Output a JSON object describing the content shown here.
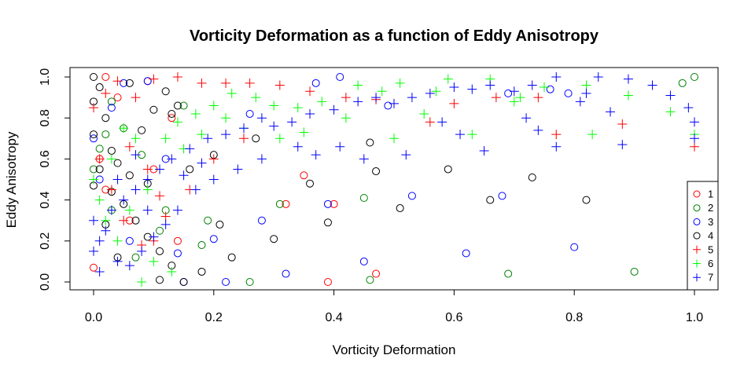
{
  "chart_data": {
    "type": "scatter",
    "title": "Vorticity Deformation as a function of Eddy Anisotropy",
    "xlabel": "Vorticity Deformation",
    "ylabel": "Eddy Anisotropy",
    "xlim": [
      0,
      1
    ],
    "ylim": [
      0,
      1
    ],
    "x_ticks": [
      "0.0",
      "0.2",
      "0.4",
      "0.6",
      "0.8",
      "1.0"
    ],
    "y_ticks": [
      "0.0",
      "0.2",
      "0.4",
      "0.6",
      "0.8",
      "1.0"
    ],
    "grid": false,
    "legend_position": "bottom-right",
    "series": [
      {
        "name": "1",
        "marker": "circle",
        "color": "#FF0000",
        "points": [
          [
            0.0,
            0.07
          ],
          [
            0.01,
            0.6
          ],
          [
            0.02,
            1.0
          ],
          [
            0.04,
            0.9
          ],
          [
            0.09,
            0.98
          ],
          [
            0.13,
            0.8
          ],
          [
            0.35,
            0.52
          ],
          [
            0.32,
            0.38
          ],
          [
            0.4,
            0.38
          ],
          [
            0.39,
            0.0
          ],
          [
            0.47,
            0.04
          ],
          [
            0.14,
            0.2
          ],
          [
            0.06,
            0.3
          ],
          [
            0.02,
            0.45
          ],
          [
            0.1,
            0.55
          ]
        ]
      },
      {
        "name": "2",
        "marker": "circle",
        "color": "#008000",
        "points": [
          [
            0.0,
            0.55
          ],
          [
            0.01,
            0.65
          ],
          [
            0.02,
            0.72
          ],
          [
            0.03,
            0.88
          ],
          [
            0.05,
            0.75
          ],
          [
            0.08,
            0.62
          ],
          [
            0.12,
            0.35
          ],
          [
            0.15,
            0.86
          ],
          [
            0.19,
            0.3
          ],
          [
            0.26,
            0.0
          ],
          [
            0.31,
            0.38
          ],
          [
            0.45,
            0.41
          ],
          [
            0.46,
            0.01
          ],
          [
            0.69,
            0.04
          ],
          [
            0.9,
            0.05
          ],
          [
            0.98,
            0.97
          ],
          [
            1.0,
            1.0
          ],
          [
            0.18,
            0.18
          ],
          [
            0.07,
            0.12
          ],
          [
            0.11,
            0.25
          ],
          [
            0.03,
            0.35
          ]
        ]
      },
      {
        "name": "3",
        "marker": "circle",
        "color": "#0000FF",
        "points": [
          [
            0.0,
            0.7
          ],
          [
            0.01,
            0.5
          ],
          [
            0.03,
            0.85
          ],
          [
            0.05,
            0.97
          ],
          [
            0.09,
            0.98
          ],
          [
            0.15,
            0.0
          ],
          [
            0.14,
            0.14
          ],
          [
            0.2,
            0.21
          ],
          [
            0.22,
            0.0
          ],
          [
            0.28,
            0.3
          ],
          [
            0.32,
            0.04
          ],
          [
            0.39,
            0.38
          ],
          [
            0.37,
            0.97
          ],
          [
            0.41,
            1.0
          ],
          [
            0.45,
            0.1
          ],
          [
            0.49,
            0.86
          ],
          [
            0.53,
            0.42
          ],
          [
            0.62,
            0.14
          ],
          [
            0.68,
            0.42
          ],
          [
            0.8,
            0.17
          ],
          [
            0.79,
            0.92
          ],
          [
            0.76,
            0.94
          ],
          [
            0.69,
            0.92
          ],
          [
            0.06,
            0.2
          ],
          [
            0.12,
            0.6
          ],
          [
            0.26,
            0.82
          ]
        ]
      },
      {
        "name": "4",
        "marker": "circle",
        "color": "#000000",
        "points": [
          [
            0.0,
            1.0
          ],
          [
            0.01,
            0.95
          ],
          [
            0.0,
            0.88
          ],
          [
            0.02,
            0.8
          ],
          [
            0.0,
            0.72
          ],
          [
            0.03,
            0.64
          ],
          [
            0.01,
            0.55
          ],
          [
            0.0,
            0.47
          ],
          [
            0.03,
            0.44
          ],
          [
            0.05,
            0.38
          ],
          [
            0.07,
            0.3
          ],
          [
            0.09,
            0.22
          ],
          [
            0.11,
            0.15
          ],
          [
            0.13,
            0.08
          ],
          [
            0.15,
            0.0
          ],
          [
            0.18,
            0.05
          ],
          [
            0.2,
            0.62
          ],
          [
            0.21,
            0.28
          ],
          [
            0.23,
            0.12
          ],
          [
            0.27,
            0.7
          ],
          [
            0.3,
            0.21
          ],
          [
            0.36,
            0.48
          ],
          [
            0.39,
            0.29
          ],
          [
            0.46,
            0.68
          ],
          [
            0.47,
            0.54
          ],
          [
            0.51,
            0.36
          ],
          [
            0.59,
            0.55
          ],
          [
            0.66,
            0.4
          ],
          [
            0.73,
            0.51
          ],
          [
            0.82,
            0.4
          ],
          [
            0.06,
            0.97
          ],
          [
            0.08,
            0.74
          ],
          [
            0.1,
            0.84
          ],
          [
            0.12,
            0.93
          ],
          [
            0.14,
            0.86
          ],
          [
            0.04,
            0.58
          ],
          [
            0.06,
            0.52
          ],
          [
            0.09,
            0.48
          ],
          [
            0.11,
            0.01
          ],
          [
            0.13,
            0.82
          ],
          [
            0.16,
            0.55
          ],
          [
            0.02,
            0.28
          ],
          [
            0.04,
            0.12
          ]
        ]
      },
      {
        "name": "5",
        "marker": "plus",
        "color": "#FF0000",
        "points": [
          [
            0.0,
            0.85
          ],
          [
            0.02,
            0.92
          ],
          [
            0.04,
            0.98
          ],
          [
            0.07,
            0.9
          ],
          [
            0.1,
            0.99
          ],
          [
            0.14,
            1.0
          ],
          [
            0.18,
            0.97
          ],
          [
            0.22,
            0.97
          ],
          [
            0.26,
            0.97
          ],
          [
            0.31,
            0.96
          ],
          [
            0.36,
            0.93
          ],
          [
            0.42,
            0.9
          ],
          [
            0.47,
            0.89
          ],
          [
            0.56,
            0.78
          ],
          [
            0.6,
            0.87
          ],
          [
            0.67,
            0.9
          ],
          [
            0.74,
            0.9
          ],
          [
            0.77,
            0.72
          ],
          [
            0.88,
            0.77
          ],
          [
            1.0,
            0.66
          ],
          [
            0.01,
            0.6
          ],
          [
            0.03,
            0.45
          ],
          [
            0.05,
            0.3
          ],
          [
            0.08,
            0.18
          ],
          [
            0.1,
            0.2
          ],
          [
            0.12,
            0.32
          ],
          [
            0.16,
            0.45
          ],
          [
            0.2,
            0.6
          ],
          [
            0.25,
            0.7
          ],
          [
            0.06,
            0.66
          ],
          [
            0.09,
            0.55
          ],
          [
            0.11,
            0.42
          ]
        ]
      },
      {
        "name": "6",
        "marker": "plus",
        "color": "#00FF00",
        "points": [
          [
            0.0,
            0.5
          ],
          [
            0.01,
            0.4
          ],
          [
            0.02,
            0.3
          ],
          [
            0.03,
            0.6
          ],
          [
            0.05,
            0.75
          ],
          [
            0.07,
            0.7
          ],
          [
            0.08,
            0.0
          ],
          [
            0.1,
            0.1
          ],
          [
            0.13,
            0.05
          ],
          [
            0.15,
            0.65
          ],
          [
            0.17,
            0.82
          ],
          [
            0.2,
            0.86
          ],
          [
            0.23,
            0.92
          ],
          [
            0.27,
            0.9
          ],
          [
            0.3,
            0.86
          ],
          [
            0.34,
            0.85
          ],
          [
            0.38,
            0.88
          ],
          [
            0.44,
            0.96
          ],
          [
            0.48,
            0.93
          ],
          [
            0.51,
            0.97
          ],
          [
            0.57,
            0.93
          ],
          [
            0.59,
            0.99
          ],
          [
            0.66,
            0.99
          ],
          [
            0.71,
            0.9
          ],
          [
            0.75,
            0.95
          ],
          [
            0.82,
            0.96
          ],
          [
            0.83,
            0.72
          ],
          [
            0.89,
            0.91
          ],
          [
            0.96,
            0.83
          ],
          [
            1.0,
            0.72
          ],
          [
            0.04,
            0.2
          ],
          [
            0.06,
            0.35
          ],
          [
            0.09,
            0.45
          ],
          [
            0.11,
            0.55
          ],
          [
            0.12,
            0.7
          ],
          [
            0.14,
            0.78
          ],
          [
            0.18,
            0.72
          ],
          [
            0.22,
            0.8
          ],
          [
            0.25,
            0.75
          ],
          [
            0.31,
            0.7
          ],
          [
            0.35,
            0.73
          ],
          [
            0.42,
            0.8
          ],
          [
            0.5,
            0.7
          ],
          [
            0.55,
            0.82
          ],
          [
            0.63,
            0.72
          ],
          [
            0.7,
            0.88
          ]
        ]
      },
      {
        "name": "7",
        "marker": "plus",
        "color": "#0000FF",
        "points": [
          [
            0.0,
            0.15
          ],
          [
            0.01,
            0.2
          ],
          [
            0.02,
            0.25
          ],
          [
            0.0,
            0.3
          ],
          [
            0.03,
            0.35
          ],
          [
            0.01,
            0.05
          ],
          [
            0.04,
            0.1
          ],
          [
            0.05,
            0.4
          ],
          [
            0.07,
            0.45
          ],
          [
            0.09,
            0.5
          ],
          [
            0.11,
            0.55
          ],
          [
            0.13,
            0.6
          ],
          [
            0.16,
            0.65
          ],
          [
            0.19,
            0.7
          ],
          [
            0.22,
            0.72
          ],
          [
            0.25,
            0.75
          ],
          [
            0.28,
            0.8
          ],
          [
            0.3,
            0.76
          ],
          [
            0.33,
            0.78
          ],
          [
            0.36,
            0.82
          ],
          [
            0.4,
            0.84
          ],
          [
            0.44,
            0.88
          ],
          [
            0.47,
            0.9
          ],
          [
            0.5,
            0.87
          ],
          [
            0.53,
            0.9
          ],
          [
            0.56,
            0.92
          ],
          [
            0.6,
            0.95
          ],
          [
            0.63,
            0.94
          ],
          [
            0.66,
            0.96
          ],
          [
            0.7,
            0.93
          ],
          [
            0.73,
            0.96
          ],
          [
            0.77,
            1.0
          ],
          [
            0.81,
            0.88
          ],
          [
            0.84,
            1.0
          ],
          [
            0.86,
            0.83
          ],
          [
            0.89,
            0.99
          ],
          [
            0.93,
            0.96
          ],
          [
            0.96,
            0.91
          ],
          [
            0.99,
            0.85
          ],
          [
            1.0,
            0.78
          ],
          [
            1.0,
            0.7
          ],
          [
            0.88,
            0.67
          ],
          [
            0.82,
            0.92
          ],
          [
            0.74,
            0.74
          ],
          [
            0.72,
            0.8
          ],
          [
            0.77,
            0.66
          ],
          [
            0.65,
            0.64
          ],
          [
            0.61,
            0.72
          ],
          [
            0.58,
            0.78
          ],
          [
            0.52,
            0.62
          ],
          [
            0.45,
            0.6
          ],
          [
            0.41,
            0.66
          ],
          [
            0.37,
            0.62
          ],
          [
            0.34,
            0.66
          ],
          [
            0.28,
            0.6
          ],
          [
            0.24,
            0.55
          ],
          [
            0.2,
            0.5
          ],
          [
            0.17,
            0.45
          ],
          [
            0.14,
            0.35
          ],
          [
            0.12,
            0.28
          ],
          [
            0.1,
            0.22
          ],
          [
            0.08,
            0.15
          ],
          [
            0.06,
            0.08
          ],
          [
            0.09,
            0.35
          ],
          [
            0.07,
            0.62
          ],
          [
            0.15,
            0.52
          ],
          [
            0.18,
            0.58
          ],
          [
            0.04,
            0.5
          ]
        ]
      }
    ]
  }
}
